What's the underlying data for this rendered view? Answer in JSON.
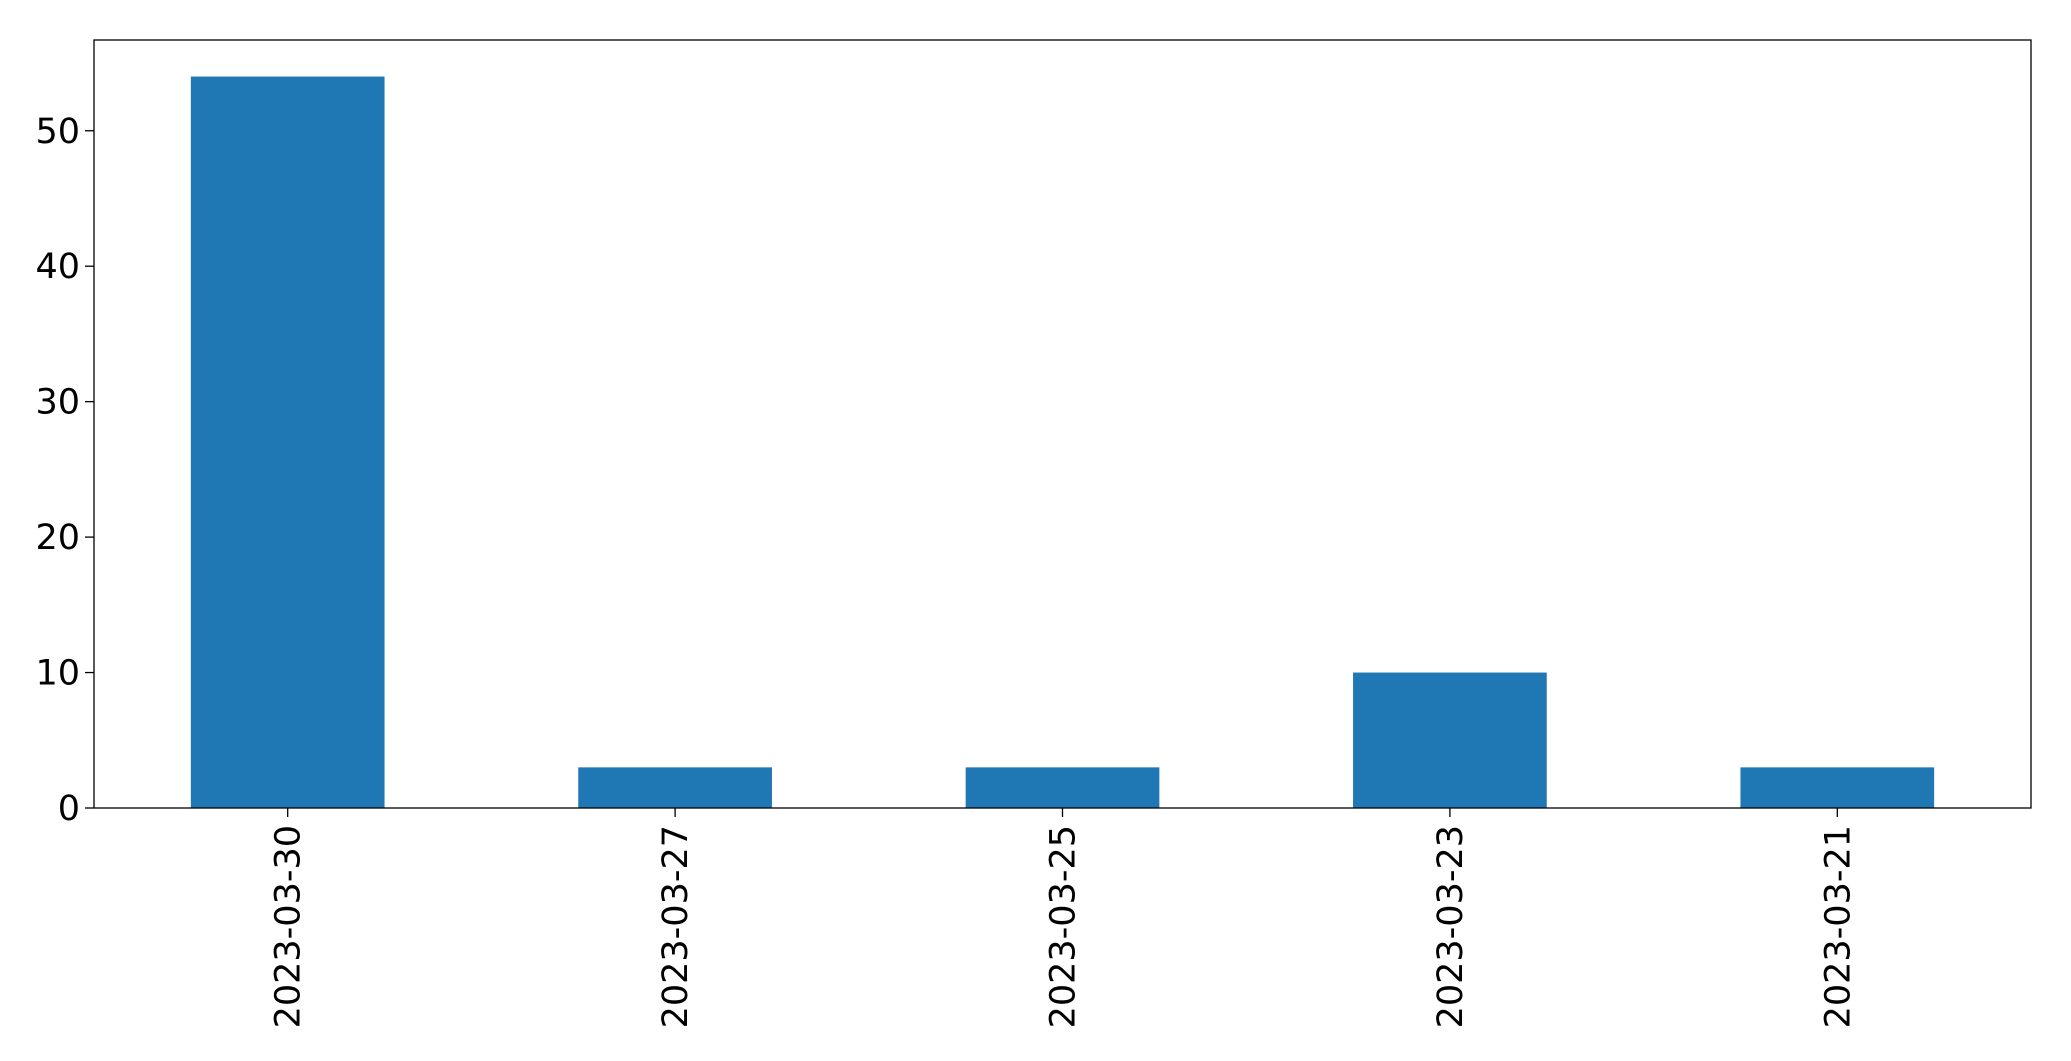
{
  "chart_data": {
    "type": "bar",
    "categories": [
      "2023-03-30",
      "2023-03-27",
      "2023-03-25",
      "2023-03-23",
      "2023-03-21"
    ],
    "values": [
      54,
      3,
      3,
      10,
      3
    ],
    "color": "#1f77b4",
    "ylim": [
      0,
      56.7
    ],
    "yticks": [
      0,
      10,
      20,
      30,
      40,
      50
    ],
    "grid": false
  }
}
